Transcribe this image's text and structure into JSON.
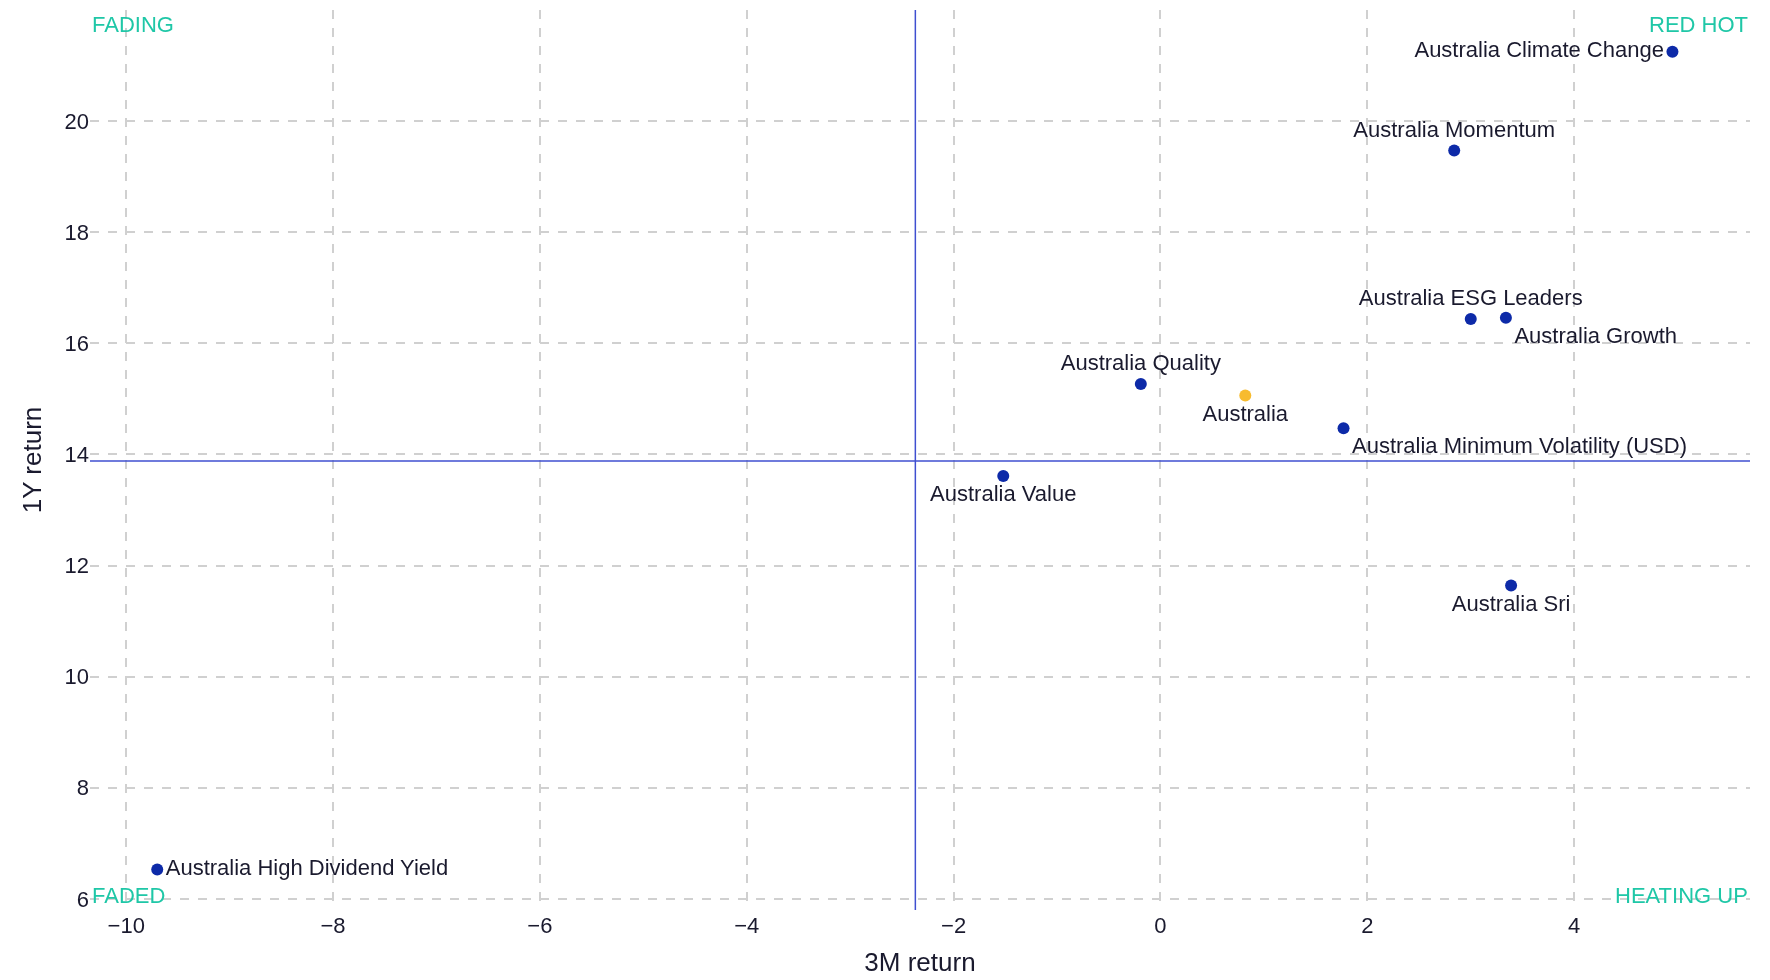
{
  "chart_data": {
    "type": "scatter",
    "xlabel": "3M return",
    "ylabel": "1Y return",
    "xlim": [
      -10.35,
      5.7
    ],
    "xticks": [
      {
        "value": -10,
        "label": "−10"
      },
      {
        "value": -8,
        "label": "−8"
      },
      {
        "value": -6,
        "label": "−6"
      },
      {
        "value": -4,
        "label": "−4"
      },
      {
        "value": -2,
        "label": "−2"
      },
      0,
      2,
      4
    ],
    "ylim": [
      5.8,
      22
    ],
    "yticks": [
      6,
      8,
      10,
      12,
      14,
      16,
      18,
      20
    ],
    "grid": true,
    "legend": false,
    "marker": "circle",
    "series": [
      {
        "name": "Australia Climate Change",
        "color": "#0d2aa8",
        "x": [
          4.95
        ],
        "values": [
          21.25
        ]
      },
      {
        "name": "Australia Momentum",
        "color": "#0d2aa8",
        "x": [
          2.84
        ],
        "values": [
          19.47
        ]
      },
      {
        "name": "Australia ESG Leaders",
        "color": "#0d2aa8",
        "x": [
          3.0
        ],
        "values": [
          16.44
        ]
      },
      {
        "name": "Australia Growth",
        "color": "#0d2aa8",
        "x": [
          3.34
        ],
        "values": [
          16.46
        ]
      },
      {
        "name": "Australia Quality",
        "color": "#0d2aa8",
        "x": [
          -0.19
        ],
        "values": [
          15.27
        ]
      },
      {
        "name": "Australia",
        "color": "#f7bb2e",
        "x": [
          0.82
        ],
        "values": [
          15.06
        ]
      },
      {
        "name": "Australia Minimum Volatility (USD)",
        "color": "#0d2aa8",
        "x": [
          1.77
        ],
        "values": [
          14.47
        ]
      },
      {
        "name": "Australia Value",
        "color": "#0d2aa8",
        "x": [
          -1.52
        ],
        "values": [
          13.61
        ]
      },
      {
        "name": "Australia Sri",
        "color": "#0d2aa8",
        "x": [
          3.39
        ],
        "values": [
          11.64
        ]
      },
      {
        "name": "Australia High Dividend Yield",
        "color": "#0d2aa8",
        "x": [
          -9.7
        ],
        "values": [
          6.53
        ]
      }
    ],
    "ref_lines": [
      {
        "axis": "x",
        "value": -2.37,
        "color": "#3f4fd0"
      },
      {
        "axis": "y",
        "value": 13.88,
        "color": "#3f4fd0"
      }
    ],
    "annotations": [
      "FADING",
      "RED HOT",
      "FADED",
      "HEATING UP"
    ]
  }
}
